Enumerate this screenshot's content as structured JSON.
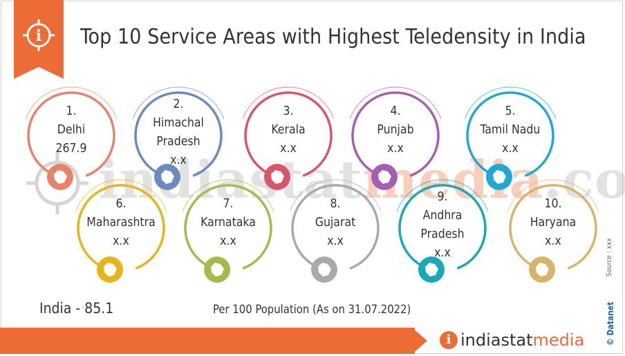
{
  "header": {
    "title": "Top 10 Service Areas with Highest Teledensity in India"
  },
  "watermark": {
    "text_main": "indiastat",
    "text_accent": "media",
    "text_end": ".com"
  },
  "items": [
    {
      "rank": "1.",
      "name": "Delhi",
      "name2": "",
      "value": "267.9",
      "color": "#e8836a"
    },
    {
      "rank": "2.",
      "name": "Himachal",
      "name2": "Pradesh",
      "value": "x.x",
      "color": "#6b8ac0"
    },
    {
      "rank": "3.",
      "name": "Kerala",
      "name2": "",
      "value": "x.x",
      "color": "#d9566a"
    },
    {
      "rank": "4.",
      "name": "Punjab",
      "name2": "",
      "value": "x.x",
      "color": "#a55fb0"
    },
    {
      "rank": "5.",
      "name": "Tamil Nadu",
      "name2": "",
      "value": "x.x",
      "color": "#1fa7d8"
    },
    {
      "rank": "6.",
      "name": "Maharashtra",
      "name2": "",
      "value": "x.x",
      "color": "#e8b41c"
    },
    {
      "rank": "7.",
      "name": "Karnataka",
      "name2": "",
      "value": "x.x",
      "color": "#a3bb4a"
    },
    {
      "rank": "8.",
      "name": "Gujarat",
      "name2": "",
      "value": "x.x",
      "color": "#a9a9a9"
    },
    {
      "rank": "9.",
      "name": "Andhra",
      "name2": "Pradesh",
      "value": "x.x",
      "color": "#1aa7b8"
    },
    {
      "rank": "10.",
      "name": "Haryana",
      "name2": "",
      "value": "x.x",
      "color": "#d8b46a"
    }
  ],
  "india_total": "India  -  85.1",
  "note": "Per 100 Population (As on 31.07.2022)",
  "source": "Source : xxx",
  "brand_vertical": "© Datanet",
  "logo": {
    "letter": "i",
    "part1": "indiastat",
    "part2": "media"
  }
}
